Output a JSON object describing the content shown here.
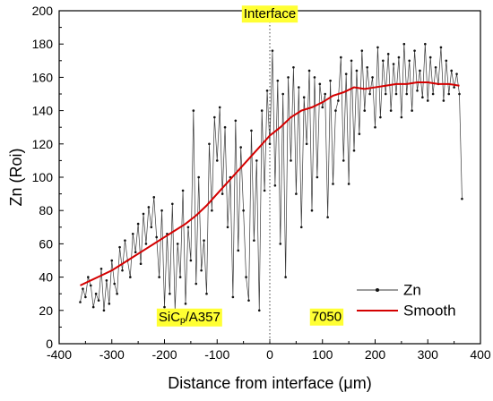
{
  "chart_data": {
    "type": "line",
    "xlabel": "Distance from interface (μm)",
    "ylabel": "Zn (Roi)",
    "xlim": [
      -400,
      400
    ],
    "ylim": [
      0,
      200
    ],
    "xticks": [
      -400,
      -300,
      -200,
      -100,
      0,
      100,
      200,
      300,
      400
    ],
    "yticks": [
      0,
      20,
      40,
      60,
      80,
      100,
      120,
      140,
      160,
      180,
      200
    ],
    "grid": false,
    "legend_position": "bottom-right",
    "colors": {
      "zn": "#3a3a3a",
      "smooth": "#d40000",
      "annotation_bg": "#ffff33"
    },
    "annotations": [
      {
        "id": "interface",
        "text": "Interface",
        "x": 0,
        "y": 198
      },
      {
        "id": "sicp",
        "base": "SiC",
        "sub": "p",
        "rest": "/A357",
        "x": -150,
        "y": 16
      },
      {
        "id": "al7050",
        "text": "7050",
        "x": 108,
        "y": 16
      }
    ],
    "reference_line": {
      "x": 0,
      "style": "dotted"
    },
    "series": [
      {
        "name": "Zn",
        "style": "line-with-dots",
        "x": [
          -360,
          -355,
          -350,
          -345,
          -340,
          -335,
          -330,
          -325,
          -320,
          -315,
          -310,
          -305,
          -300,
          -295,
          -290,
          -285,
          -280,
          -275,
          -270,
          -265,
          -260,
          -255,
          -250,
          -245,
          -240,
          -235,
          -230,
          -225,
          -220,
          -215,
          -210,
          -205,
          -200,
          -195,
          -190,
          -185,
          -180,
          -175,
          -170,
          -165,
          -160,
          -155,
          -150,
          -145,
          -140,
          -135,
          -130,
          -125,
          -120,
          -115,
          -110,
          -105,
          -100,
          -95,
          -90,
          -85,
          -80,
          -75,
          -70,
          -65,
          -60,
          -55,
          -50,
          -45,
          -40,
          -35,
          -30,
          -25,
          -20,
          -15,
          -10,
          -5,
          0,
          5,
          10,
          15,
          20,
          25,
          30,
          35,
          40,
          45,
          50,
          55,
          60,
          65,
          70,
          75,
          80,
          85,
          90,
          95,
          100,
          105,
          110,
          115,
          120,
          125,
          130,
          135,
          140,
          145,
          150,
          155,
          160,
          165,
          170,
          175,
          180,
          185,
          190,
          195,
          200,
          205,
          210,
          215,
          220,
          225,
          230,
          235,
          240,
          245,
          250,
          255,
          260,
          265,
          270,
          275,
          280,
          285,
          290,
          295,
          300,
          305,
          310,
          315,
          320,
          325,
          330,
          335,
          340,
          345,
          350,
          355,
          360,
          365
        ],
        "y": [
          25,
          33,
          28,
          40,
          35,
          22,
          30,
          26,
          45,
          20,
          38,
          24,
          50,
          36,
          30,
          58,
          44,
          62,
          50,
          40,
          66,
          55,
          72,
          48,
          78,
          60,
          82,
          70,
          88,
          64,
          40,
          80,
          22,
          66,
          30,
          84,
          20,
          60,
          40,
          92,
          24,
          70,
          50,
          140,
          36,
          100,
          44,
          62,
          30,
          120,
          80,
          136,
          110,
          142,
          90,
          130,
          70,
          100,
          28,
          134,
          56,
          118,
          80,
          40,
          26,
          128,
          62,
          110,
          20,
          140,
          92,
          152,
          120,
          176,
          95,
          158,
          60,
          150,
          40,
          160,
          110,
          166,
          90,
          154,
          70,
          148,
          120,
          164,
          80,
          160,
          100,
          156,
          142,
          150,
          76,
          158,
          96,
          140,
          146,
          172,
          110,
          162,
          96,
          170,
          116,
          164,
          126,
          176,
          140,
          166,
          150,
          160,
          130,
          178,
          136,
          170,
          150,
          174,
          140,
          168,
          150,
          172,
          136,
          180,
          150,
          170,
          140,
          176,
          152,
          164,
          148,
          180,
          146,
          172,
          150,
          166,
          156,
          178,
          146,
          170,
          150,
          164,
          154,
          162,
          150,
          87
        ]
      },
      {
        "name": "Smooth",
        "style": "line",
        "x": [
          -360,
          -340,
          -320,
          -300,
          -280,
          -260,
          -240,
          -220,
          -200,
          -180,
          -160,
          -140,
          -120,
          -100,
          -80,
          -60,
          -40,
          -20,
          0,
          20,
          40,
          60,
          80,
          100,
          120,
          140,
          160,
          180,
          200,
          220,
          240,
          260,
          280,
          300,
          320,
          340,
          360
        ],
        "y": [
          35,
          38,
          41,
          44,
          48,
          52,
          56,
          60,
          64,
          68,
          72,
          77,
          83,
          90,
          97,
          104,
          111,
          118,
          125,
          130,
          136,
          140,
          142,
          145,
          149,
          151,
          154,
          153,
          154,
          155,
          156,
          156,
          157,
          157,
          156,
          156,
          155
        ]
      }
    ]
  }
}
